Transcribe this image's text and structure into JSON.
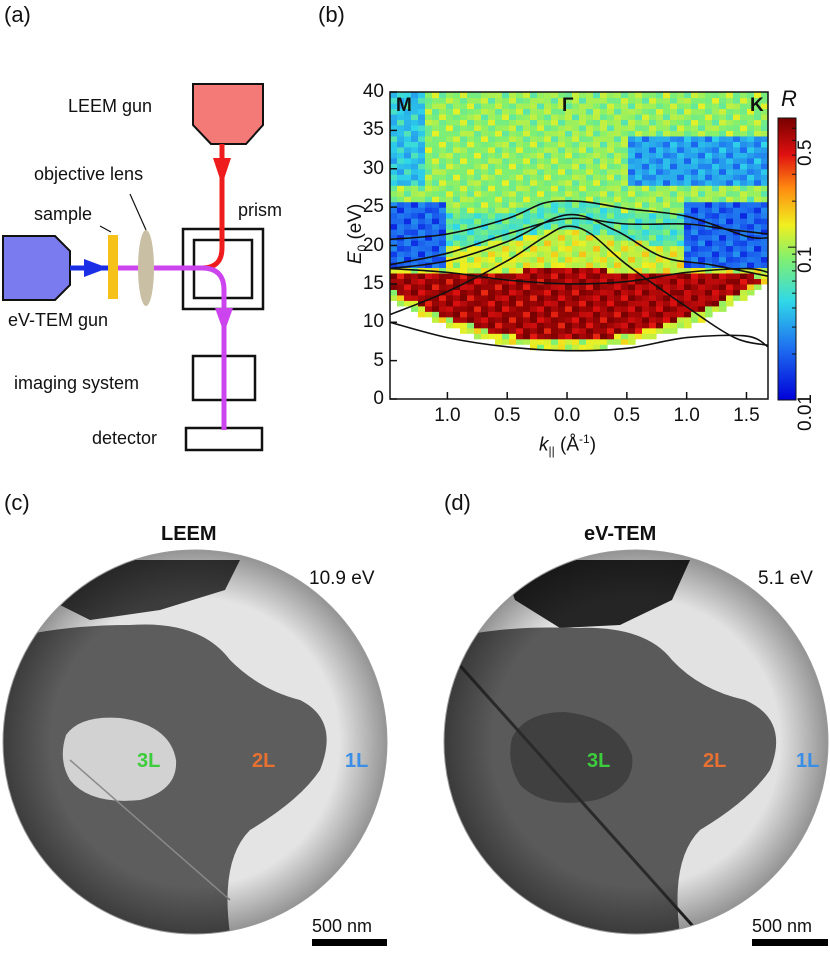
{
  "panels": {
    "a": {
      "label": "(a)",
      "labels": {
        "leem_gun": "LEEM gun",
        "objective_lens": "objective lens",
        "sample": "sample",
        "prism": "prism",
        "evtem_gun": "eV-TEM gun",
        "imaging_system": "imaging system",
        "detector": "detector"
      },
      "colors": {
        "leem_beam": "#ee1c1c",
        "evtem_beam": "#cc44ee",
        "leem_gun": "#f47a78",
        "evtem_gun": "#7b7bf0",
        "sample": "#f6c21a",
        "lens": "#c9bfa4"
      }
    },
    "b": {
      "label": "(b)"
    },
    "c": {
      "label": "(c)",
      "title": "LEEM",
      "energy": "10.9 eV",
      "layers": [
        "3L",
        "2L",
        "1L"
      ],
      "scalebar": "500 nm"
    },
    "d": {
      "label": "(d)",
      "title": "eV-TEM",
      "energy": "5.1 eV",
      "layers": [
        "3L",
        "2L",
        "1L"
      ],
      "scalebar": "500 nm"
    }
  },
  "layer_colors": {
    "3L": "#3ccc3c",
    "2L": "#e87030",
    "1L": "#3a8ee6"
  },
  "chart_data": {
    "type": "heatmap",
    "title": "",
    "xlabel": "k∥ (Å⁻¹)",
    "ylabel": "E₀ (eV)",
    "x_tick_labels": [
      "1.0",
      "0.5",
      "0.0",
      "0.5",
      "1.0",
      "1.5"
    ],
    "x_tick_values": [
      -1.0,
      -0.5,
      0.0,
      0.5,
      1.0,
      1.5
    ],
    "xlim": [
      -1.48,
      1.68
    ],
    "ylim": [
      0,
      40
    ],
    "y_ticks": [
      0,
      5,
      10,
      15,
      20,
      25,
      30,
      35,
      40
    ],
    "y_tick_labels": [
      "0",
      "5",
      "10",
      "15",
      "20",
      "25",
      "30",
      "35",
      "40"
    ],
    "symmetry_points": [
      {
        "label": "M",
        "k": -1.48
      },
      {
        "label": "Γ",
        "k": 0.0
      },
      {
        "label": "K",
        "k": 1.68
      }
    ],
    "colorbar": {
      "label": "R",
      "scale": "log",
      "ticks": [
        "0.5",
        "0.1",
        "0.01"
      ],
      "tick_values": [
        0.5,
        0.1,
        0.01
      ],
      "range": [
        0.01,
        0.7
      ]
    },
    "bands": [
      {
        "name": "band-1",
        "k": [
          -1.48,
          -1.0,
          -0.5,
          -0.2,
          0.0,
          0.2,
          0.5,
          1.0,
          1.5,
          1.68
        ],
        "E": [
          20.8,
          21.5,
          23.5,
          25.5,
          25.8,
          25.6,
          24.8,
          23.8,
          21.2,
          21.0
        ]
      },
      {
        "name": "band-2",
        "k": [
          -1.48,
          -1.0,
          -0.5,
          0.0,
          0.5,
          1.0,
          1.3,
          1.68
        ],
        "E": [
          17.5,
          19,
          21.5,
          23.5,
          22.8,
          22.8,
          22.2,
          21.5
        ]
      },
      {
        "name": "band-3",
        "k": [
          -1.48,
          -1.0,
          -0.5,
          0.0,
          0.4,
          0.8,
          1.2,
          1.68
        ],
        "E": [
          17.0,
          18,
          20.5,
          24.0,
          22.0,
          18.5,
          17.5,
          16.0
        ]
      },
      {
        "name": "band-4",
        "k": [
          -1.48,
          -1.0,
          -0.5,
          -0.2,
          0.0,
          0.2,
          0.5,
          1.0,
          1.4,
          1.68
        ],
        "E": [
          11.0,
          14.0,
          18.0,
          21.0,
          22.5,
          21.5,
          17.5,
          12.0,
          8.0,
          7.0
        ]
      },
      {
        "name": "band-5",
        "k": [
          -1.48,
          -1.0,
          -0.5,
          0.0,
          0.5,
          1.0,
          1.5,
          1.68
        ],
        "E": [
          17.0,
          16.5,
          15.5,
          15.0,
          15.3,
          16.5,
          17.0,
          16.5
        ]
      },
      {
        "name": "band-6",
        "k": [
          -1.48,
          -1.0,
          -0.5,
          0.0,
          0.5,
          1.0,
          1.5,
          1.68
        ],
        "E": [
          10.0,
          8.0,
          6.8,
          6.3,
          6.6,
          8.0,
          8.2,
          6.8
        ]
      }
    ]
  }
}
